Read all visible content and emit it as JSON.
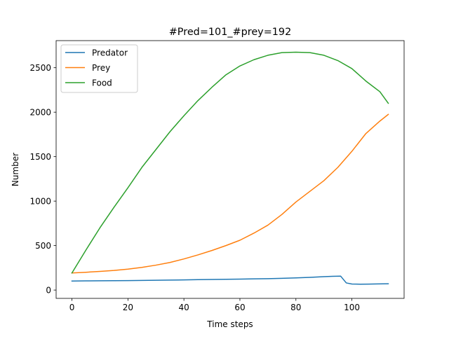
{
  "chart_data": {
    "type": "line",
    "title": "#Pred=101_#prey=192",
    "xlabel": "Time steps",
    "ylabel": "Number",
    "xlim": [
      -5.65,
      118.65
    ],
    "ylim": [
      -93.65,
      2804.65
    ],
    "xticks": [
      0,
      20,
      40,
      60,
      80,
      100
    ],
    "yticks": [
      0,
      500,
      1000,
      1500,
      2000,
      2500
    ],
    "grid": false,
    "legend_position": "top-left",
    "series": [
      {
        "name": "Predator",
        "color": "#1f77b4",
        "x": [
          0,
          5,
          10,
          15,
          20,
          25,
          30,
          35,
          40,
          45,
          50,
          55,
          60,
          65,
          70,
          75,
          80,
          85,
          90,
          93,
          96,
          98,
          100,
          103,
          106,
          109,
          113
        ],
        "y": [
          101,
          103,
          104,
          105,
          106,
          108,
          110,
          112,
          114,
          117,
          119,
          121,
          123,
          126,
          128,
          132,
          137,
          143,
          150,
          154,
          156,
          80,
          68,
          66,
          67,
          69,
          71
        ]
      },
      {
        "name": "Prey",
        "color": "#ff7f0e",
        "x": [
          0,
          5,
          10,
          15,
          20,
          25,
          30,
          35,
          40,
          45,
          50,
          55,
          60,
          65,
          70,
          75,
          80,
          85,
          90,
          95,
          100,
          105,
          110,
          113
        ],
        "y": [
          192,
          200,
          210,
          220,
          235,
          255,
          280,
          310,
          350,
          395,
          445,
          500,
          560,
          640,
          730,
          850,
          990,
          1110,
          1230,
          1380,
          1560,
          1760,
          1900,
          1975
        ]
      },
      {
        "name": "Food",
        "color": "#2ca02c",
        "x": [
          0,
          5,
          10,
          15,
          20,
          25,
          30,
          35,
          40,
          45,
          50,
          55,
          60,
          65,
          70,
          75,
          80,
          85,
          90,
          95,
          100,
          105,
          110,
          113
        ],
        "y": [
          192,
          450,
          700,
          930,
          1150,
          1380,
          1580,
          1780,
          1960,
          2130,
          2280,
          2420,
          2520,
          2590,
          2640,
          2670,
          2675,
          2670,
          2640,
          2580,
          2490,
          2350,
          2230,
          2100
        ]
      }
    ]
  }
}
